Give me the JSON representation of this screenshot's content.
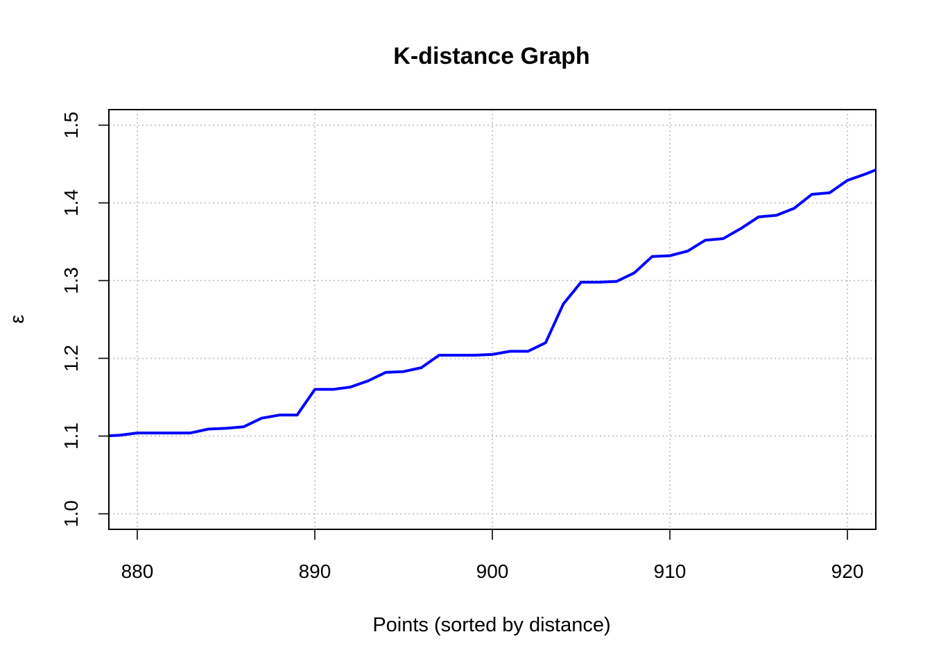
{
  "chart_data": {
    "type": "line",
    "title": "K-distance Graph",
    "xlabel": "Points (sorted by distance)",
    "ylabel": "ε",
    "xlim": [
      878.4,
      921.6
    ],
    "ylim": [
      0.98,
      1.52
    ],
    "xticks": [
      "880",
      "890",
      "900",
      "910",
      "920"
    ],
    "yticks": [
      "1.0",
      "1.1",
      "1.2",
      "1.3",
      "1.4",
      "1.5"
    ],
    "grid": true,
    "grid_style": "dotted",
    "series": [
      {
        "color": "#0000ff",
        "x": [
          878,
          879,
          880,
          881,
          882,
          883,
          884,
          885,
          886,
          887,
          888,
          889,
          890,
          891,
          892,
          893,
          894,
          895,
          896,
          897,
          898,
          899,
          900,
          901,
          902,
          903,
          904,
          905,
          906,
          907,
          908,
          909,
          910,
          911,
          912,
          913,
          914,
          915,
          916,
          917,
          918,
          919,
          920,
          921,
          922
        ],
        "y": [
          1.1,
          1.101,
          1.104,
          1.104,
          1.104,
          1.104,
          1.109,
          1.11,
          1.112,
          1.123,
          1.127,
          1.127,
          1.16,
          1.16,
          1.163,
          1.171,
          1.182,
          1.183,
          1.188,
          1.204,
          1.204,
          1.204,
          1.205,
          1.209,
          1.209,
          1.22,
          1.27,
          1.298,
          1.298,
          1.299,
          1.31,
          1.331,
          1.332,
          1.338,
          1.352,
          1.354,
          1.367,
          1.382,
          1.384,
          1.393,
          1.411,
          1.413,
          1.429,
          1.437,
          1.446
        ]
      }
    ]
  }
}
